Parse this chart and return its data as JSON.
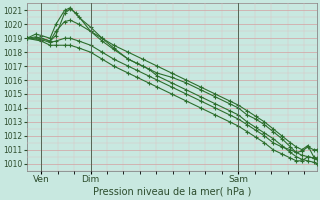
{
  "title": "Pression niveau de la mer( hPa )",
  "bg_color": "#c8e8e0",
  "grid_color_major": "#d4a0a0",
  "grid_color_minor": "#e0c0c0",
  "line_color": "#2d6e2d",
  "marker_color": "#2d6e2d",
  "ylim": [
    1009.5,
    1021.5
  ],
  "yticks": [
    1010,
    1011,
    1012,
    1013,
    1014,
    1015,
    1016,
    1017,
    1018,
    1019,
    1020,
    1021
  ],
  "xtick_positions": [
    0.05,
    0.22,
    0.73
  ],
  "xtick_labels": [
    "Ven",
    "Dim",
    "Sam"
  ],
  "vline_positions": [
    0.05,
    0.22,
    0.73
  ],
  "series": [
    [
      0.0,
      1019.0,
      0.03,
      1019.3,
      0.05,
      1019.2,
      0.08,
      1019.0,
      0.1,
      1020.0,
      0.13,
      1021.0,
      0.15,
      1021.2,
      0.18,
      1020.5,
      0.22,
      1019.8,
      0.26,
      1019.0,
      0.3,
      1018.5,
      0.35,
      1018.0,
      0.4,
      1017.5,
      0.45,
      1017.0,
      0.5,
      1016.5,
      0.55,
      1016.0,
      0.6,
      1015.5,
      0.65,
      1015.0,
      0.7,
      1014.5,
      0.73,
      1014.2,
      0.76,
      1013.8,
      0.79,
      1013.4,
      0.82,
      1013.0,
      0.85,
      1012.5,
      0.88,
      1012.0,
      0.91,
      1011.5,
      0.93,
      1011.2,
      0.95,
      1011.0,
      0.97,
      1011.3,
      0.99,
      1010.5,
      1.0,
      1010.3
    ],
    [
      0.0,
      1019.0,
      0.03,
      1019.1,
      0.05,
      1019.0,
      0.08,
      1018.8,
      0.1,
      1019.5,
      0.13,
      1020.2,
      0.15,
      1020.3,
      0.18,
      1020.0,
      0.22,
      1019.5,
      0.26,
      1019.0,
      0.3,
      1018.3,
      0.35,
      1017.5,
      0.4,
      1017.0,
      0.45,
      1016.5,
      0.5,
      1016.2,
      0.55,
      1015.8,
      0.6,
      1015.3,
      0.65,
      1014.8,
      0.7,
      1014.3,
      0.73,
      1014.0,
      0.76,
      1013.5,
      0.79,
      1013.2,
      0.82,
      1012.8,
      0.85,
      1012.3,
      0.88,
      1011.8,
      0.91,
      1011.2,
      0.93,
      1010.8,
      0.95,
      1010.6,
      0.97,
      1010.5,
      0.99,
      1010.4,
      1.0,
      1010.3
    ],
    [
      0.0,
      1019.0,
      0.05,
      1019.0,
      0.08,
      1018.8,
      0.1,
      1019.2,
      0.13,
      1020.8,
      0.15,
      1021.1,
      0.17,
      1020.8,
      0.22,
      1019.5,
      0.26,
      1018.8,
      0.3,
      1018.2,
      0.35,
      1017.5,
      0.38,
      1017.2,
      0.42,
      1016.8,
      0.45,
      1016.3,
      0.5,
      1015.8,
      0.55,
      1015.3,
      0.6,
      1014.8,
      0.65,
      1014.3,
      0.7,
      1013.8,
      0.73,
      1013.5,
      0.76,
      1013.0,
      0.79,
      1012.6,
      0.82,
      1012.2,
      0.85,
      1011.8,
      0.88,
      1011.3,
      0.91,
      1010.8,
      0.93,
      1010.5,
      0.95,
      1010.3,
      0.97,
      1010.2,
      0.99,
      1010.1,
      1.0,
      1010.0
    ],
    [
      0.0,
      1019.0,
      0.05,
      1018.9,
      0.08,
      1018.7,
      0.1,
      1018.8,
      0.13,
      1019.0,
      0.15,
      1019.0,
      0.18,
      1018.8,
      0.22,
      1018.5,
      0.26,
      1018.0,
      0.3,
      1017.5,
      0.35,
      1017.0,
      0.38,
      1016.7,
      0.42,
      1016.3,
      0.45,
      1016.0,
      0.5,
      1015.5,
      0.55,
      1015.0,
      0.6,
      1014.5,
      0.65,
      1014.0,
      0.7,
      1013.5,
      0.73,
      1013.2,
      0.76,
      1012.8,
      0.79,
      1012.4,
      0.82,
      1012.0,
      0.85,
      1011.5,
      0.88,
      1011.2,
      0.91,
      1011.0,
      0.93,
      1010.8,
      0.95,
      1010.9,
      0.97,
      1011.2,
      0.99,
      1011.0,
      1.0,
      1011.0
    ],
    [
      0.0,
      1019.0,
      0.05,
      1018.8,
      0.08,
      1018.5,
      0.1,
      1018.5,
      0.13,
      1018.5,
      0.15,
      1018.5,
      0.18,
      1018.3,
      0.22,
      1018.0,
      0.26,
      1017.5,
      0.3,
      1017.0,
      0.35,
      1016.5,
      0.38,
      1016.2,
      0.42,
      1015.8,
      0.45,
      1015.5,
      0.5,
      1015.0,
      0.55,
      1014.5,
      0.6,
      1014.0,
      0.65,
      1013.5,
      0.7,
      1013.0,
      0.73,
      1012.7,
      0.76,
      1012.3,
      0.79,
      1011.9,
      0.82,
      1011.5,
      0.85,
      1011.0,
      0.88,
      1010.7,
      0.91,
      1010.4,
      0.93,
      1010.2,
      0.95,
      1010.2,
      0.97,
      1010.5,
      0.99,
      1010.4,
      1.0,
      1010.4
    ]
  ]
}
